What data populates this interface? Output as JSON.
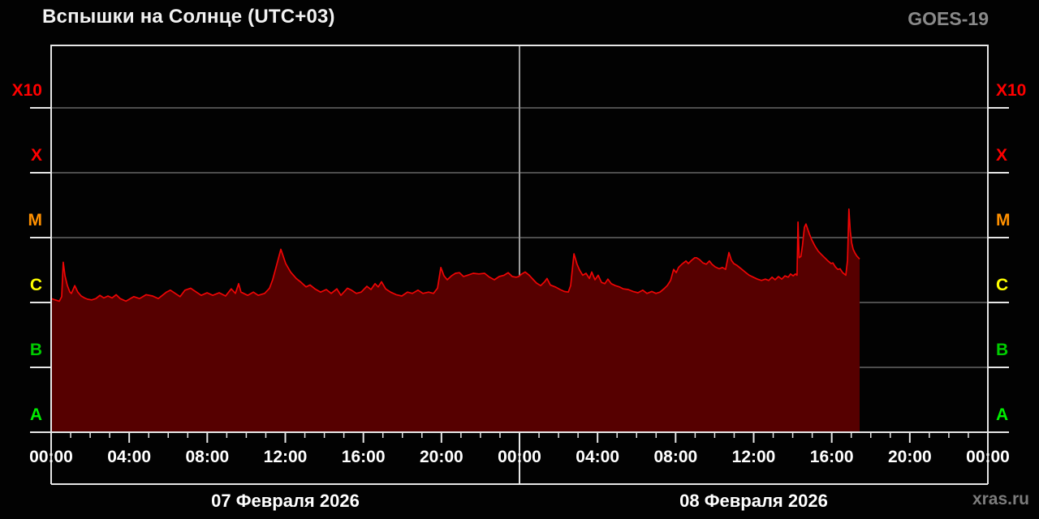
{
  "header": {
    "title": "Вспышки на Солнце (UTC+03)",
    "satellite": "GOES-19"
  },
  "watermark": "xras.ru",
  "chart_data": {
    "type": "area",
    "title": "Вспышки на Солнце (UTC+03)",
    "subtitle": "GOES-19",
    "x_axis": {
      "unit": "hours",
      "range_hours": [
        0,
        48
      ],
      "minor_tick_hours": 1,
      "label_interval_hours": 4,
      "tick_labels": [
        "00:00",
        "04:00",
        "08:00",
        "12:00",
        "16:00",
        "20:00",
        "00:00",
        "04:00",
        "08:00",
        "12:00",
        "16:00",
        "20:00",
        "00:00"
      ],
      "dates": [
        {
          "label": "07 Февраля 2026",
          "start_hour": 0,
          "end_hour": 24
        },
        {
          "label": "08 Февраля 2026",
          "start_hour": 24,
          "end_hour": 48
        }
      ]
    },
    "y_axis": {
      "scale": "log10",
      "quantity": "x-ray flux class",
      "log_range": [
        -8,
        -2
      ],
      "classes": [
        {
          "label": "A",
          "color": "#00ee00",
          "log_bottom": -8
        },
        {
          "label": "B",
          "color": "#00cc00",
          "log_bottom": -7
        },
        {
          "label": "C",
          "color": "#ffff00",
          "log_bottom": -6
        },
        {
          "label": "M",
          "color": "#ff9000",
          "log_bottom": -5
        },
        {
          "label": "X",
          "color": "#ff0000",
          "log_bottom": -4
        },
        {
          "label": "X10",
          "color": "#ff0000",
          "log_bottom": -3
        }
      ]
    },
    "grid": {
      "horizontal_class_lines": true,
      "day_separator_at_hour": 24
    },
    "data_end_hour": 41.43,
    "series": [
      {
        "name": "GOES-19 X-ray flux",
        "line_color": "#ee0505",
        "fill_color": "#560000",
        "points": [
          [
            0.0,
            -5.94
          ],
          [
            0.21,
            -5.96
          ],
          [
            0.42,
            -5.98
          ],
          [
            0.54,
            -5.91
          ],
          [
            0.62,
            -5.38
          ],
          [
            0.71,
            -5.59
          ],
          [
            0.83,
            -5.74
          ],
          [
            0.96,
            -5.84
          ],
          [
            1.04,
            -5.86
          ],
          [
            1.21,
            -5.74
          ],
          [
            1.37,
            -5.84
          ],
          [
            1.54,
            -5.9
          ],
          [
            1.71,
            -5.93
          ],
          [
            1.87,
            -5.95
          ],
          [
            2.08,
            -5.96
          ],
          [
            2.29,
            -5.94
          ],
          [
            2.5,
            -5.89
          ],
          [
            2.7,
            -5.93
          ],
          [
            2.91,
            -5.9
          ],
          [
            3.12,
            -5.93
          ],
          [
            3.33,
            -5.88
          ],
          [
            3.54,
            -5.94
          ],
          [
            3.83,
            -5.98
          ],
          [
            4.24,
            -5.91
          ],
          [
            4.53,
            -5.94
          ],
          [
            4.87,
            -5.88
          ],
          [
            5.2,
            -5.9
          ],
          [
            5.49,
            -5.94
          ],
          [
            5.91,
            -5.84
          ],
          [
            6.11,
            -5.81
          ],
          [
            6.36,
            -5.86
          ],
          [
            6.61,
            -5.91
          ],
          [
            6.86,
            -5.81
          ],
          [
            7.15,
            -5.78
          ],
          [
            7.44,
            -5.84
          ],
          [
            7.69,
            -5.89
          ],
          [
            7.99,
            -5.85
          ],
          [
            8.28,
            -5.89
          ],
          [
            8.61,
            -5.85
          ],
          [
            8.94,
            -5.9
          ],
          [
            9.23,
            -5.79
          ],
          [
            9.44,
            -5.86
          ],
          [
            9.61,
            -5.71
          ],
          [
            9.73,
            -5.84
          ],
          [
            10.07,
            -5.89
          ],
          [
            10.36,
            -5.84
          ],
          [
            10.61,
            -5.89
          ],
          [
            10.94,
            -5.86
          ],
          [
            11.19,
            -5.78
          ],
          [
            11.35,
            -5.65
          ],
          [
            11.52,
            -5.46
          ],
          [
            11.77,
            -5.18
          ],
          [
            12.02,
            -5.4
          ],
          [
            12.27,
            -5.53
          ],
          [
            12.56,
            -5.63
          ],
          [
            12.81,
            -5.69
          ],
          [
            13.06,
            -5.76
          ],
          [
            13.27,
            -5.73
          ],
          [
            13.52,
            -5.79
          ],
          [
            13.81,
            -5.84
          ],
          [
            14.1,
            -5.8
          ],
          [
            14.35,
            -5.86
          ],
          [
            14.64,
            -5.79
          ],
          [
            14.85,
            -5.89
          ],
          [
            15.18,
            -5.78
          ],
          [
            15.39,
            -5.81
          ],
          [
            15.64,
            -5.86
          ],
          [
            15.89,
            -5.84
          ],
          [
            16.18,
            -5.75
          ],
          [
            16.39,
            -5.8
          ],
          [
            16.6,
            -5.71
          ],
          [
            16.76,
            -5.76
          ],
          [
            16.93,
            -5.68
          ],
          [
            17.14,
            -5.79
          ],
          [
            17.39,
            -5.84
          ],
          [
            17.68,
            -5.88
          ],
          [
            17.97,
            -5.9
          ],
          [
            18.26,
            -5.84
          ],
          [
            18.51,
            -5.86
          ],
          [
            18.8,
            -5.81
          ],
          [
            19.05,
            -5.86
          ],
          [
            19.34,
            -5.84
          ],
          [
            19.59,
            -5.86
          ],
          [
            19.8,
            -5.78
          ],
          [
            19.97,
            -5.46
          ],
          [
            20.13,
            -5.59
          ],
          [
            20.3,
            -5.65
          ],
          [
            20.51,
            -5.59
          ],
          [
            20.72,
            -5.55
          ],
          [
            20.92,
            -5.54
          ],
          [
            21.13,
            -5.6
          ],
          [
            21.34,
            -5.58
          ],
          [
            21.63,
            -5.55
          ],
          [
            21.92,
            -5.56
          ],
          [
            22.21,
            -5.55
          ],
          [
            22.46,
            -5.61
          ],
          [
            22.71,
            -5.65
          ],
          [
            22.96,
            -5.6
          ],
          [
            23.21,
            -5.58
          ],
          [
            23.42,
            -5.54
          ],
          [
            23.63,
            -5.6
          ],
          [
            23.83,
            -5.61
          ],
          [
            23.96,
            -5.6
          ],
          [
            24.12,
            -5.56
          ],
          [
            24.29,
            -5.53
          ],
          [
            24.5,
            -5.58
          ],
          [
            24.71,
            -5.65
          ],
          [
            24.87,
            -5.7
          ],
          [
            25.08,
            -5.74
          ],
          [
            25.29,
            -5.68
          ],
          [
            25.41,
            -5.63
          ],
          [
            25.58,
            -5.73
          ],
          [
            25.83,
            -5.76
          ],
          [
            26.08,
            -5.8
          ],
          [
            26.29,
            -5.83
          ],
          [
            26.5,
            -5.84
          ],
          [
            26.62,
            -5.74
          ],
          [
            26.79,
            -5.25
          ],
          [
            26.95,
            -5.41
          ],
          [
            27.08,
            -5.5
          ],
          [
            27.24,
            -5.58
          ],
          [
            27.41,
            -5.55
          ],
          [
            27.58,
            -5.63
          ],
          [
            27.7,
            -5.53
          ],
          [
            27.87,
            -5.65
          ],
          [
            28.03,
            -5.58
          ],
          [
            28.2,
            -5.69
          ],
          [
            28.37,
            -5.71
          ],
          [
            28.53,
            -5.64
          ],
          [
            28.7,
            -5.71
          ],
          [
            28.91,
            -5.74
          ],
          [
            29.12,
            -5.76
          ],
          [
            29.32,
            -5.79
          ],
          [
            29.57,
            -5.8
          ],
          [
            29.82,
            -5.83
          ],
          [
            30.07,
            -5.85
          ],
          [
            30.32,
            -5.81
          ],
          [
            30.53,
            -5.86
          ],
          [
            30.78,
            -5.83
          ],
          [
            30.99,
            -5.86
          ],
          [
            31.2,
            -5.84
          ],
          [
            31.4,
            -5.79
          ],
          [
            31.57,
            -5.74
          ],
          [
            31.74,
            -5.66
          ],
          [
            31.9,
            -5.49
          ],
          [
            32.03,
            -5.54
          ],
          [
            32.15,
            -5.46
          ],
          [
            32.32,
            -5.41
          ],
          [
            32.53,
            -5.36
          ],
          [
            32.65,
            -5.4
          ],
          [
            32.82,
            -5.35
          ],
          [
            32.98,
            -5.31
          ],
          [
            33.07,
            -5.31
          ],
          [
            33.23,
            -5.34
          ],
          [
            33.4,
            -5.39
          ],
          [
            33.57,
            -5.41
          ],
          [
            33.73,
            -5.36
          ],
          [
            33.86,
            -5.41
          ],
          [
            34.02,
            -5.45
          ],
          [
            34.23,
            -5.48
          ],
          [
            34.4,
            -5.46
          ],
          [
            34.56,
            -5.49
          ],
          [
            34.73,
            -5.23
          ],
          [
            34.86,
            -5.35
          ],
          [
            34.98,
            -5.4
          ],
          [
            35.15,
            -5.43
          ],
          [
            35.36,
            -5.48
          ],
          [
            35.56,
            -5.53
          ],
          [
            35.77,
            -5.58
          ],
          [
            35.98,
            -5.61
          ],
          [
            36.19,
            -5.64
          ],
          [
            36.4,
            -5.66
          ],
          [
            36.6,
            -5.64
          ],
          [
            36.77,
            -5.66
          ],
          [
            36.94,
            -5.61
          ],
          [
            37.1,
            -5.65
          ],
          [
            37.27,
            -5.6
          ],
          [
            37.44,
            -5.64
          ],
          [
            37.6,
            -5.59
          ],
          [
            37.77,
            -5.61
          ],
          [
            37.89,
            -5.56
          ],
          [
            38.02,
            -5.59
          ],
          [
            38.14,
            -5.56
          ],
          [
            38.22,
            -5.58
          ],
          [
            38.27,
            -4.76
          ],
          [
            38.33,
            -5.31
          ],
          [
            38.42,
            -5.29
          ],
          [
            38.5,
            -5.12
          ],
          [
            38.6,
            -4.84
          ],
          [
            38.68,
            -4.79
          ],
          [
            38.85,
            -4.94
          ],
          [
            38.97,
            -5.03
          ],
          [
            39.14,
            -5.13
          ],
          [
            39.31,
            -5.21
          ],
          [
            39.47,
            -5.26
          ],
          [
            39.64,
            -5.31
          ],
          [
            39.81,
            -5.36
          ],
          [
            39.97,
            -5.4
          ],
          [
            40.06,
            -5.39
          ],
          [
            40.18,
            -5.45
          ],
          [
            40.31,
            -5.49
          ],
          [
            40.43,
            -5.48
          ],
          [
            40.56,
            -5.54
          ],
          [
            40.64,
            -5.56
          ],
          [
            40.72,
            -5.58
          ],
          [
            40.81,
            -5.35
          ],
          [
            40.88,
            -4.56
          ],
          [
            40.95,
            -4.9
          ],
          [
            41.02,
            -5.08
          ],
          [
            41.1,
            -5.18
          ],
          [
            41.18,
            -5.23
          ],
          [
            41.28,
            -5.28
          ],
          [
            41.43,
            -5.33
          ]
        ]
      }
    ]
  }
}
